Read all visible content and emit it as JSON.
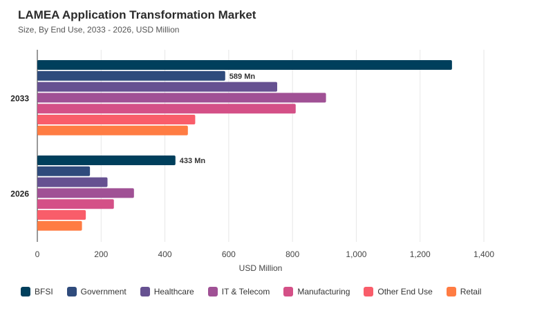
{
  "chart_data": {
    "type": "bar",
    "orientation": "horizontal",
    "title": "LAMEA Application Transformation Market",
    "subtitle": "Size, By End Use, 2033 - 2026, USD Million",
    "xlabel": "USD Million",
    "ylabel": "",
    "xlim": [
      0,
      1400
    ],
    "xticks": [
      "0",
      "200",
      "400",
      "600",
      "800",
      "1,000",
      "1,200",
      "1,400"
    ],
    "xtick_values": [
      0,
      200,
      400,
      600,
      800,
      1000,
      1200,
      1400
    ],
    "grid": true,
    "legend_position": "bottom",
    "categories": [
      "2033",
      "2026"
    ],
    "series": [
      {
        "name": "BFSI",
        "color": "#003f5c",
        "values": [
          1300,
          433
        ]
      },
      {
        "name": "Government",
        "color": "#2f4b7c",
        "values": [
          589,
          165
        ]
      },
      {
        "name": "Healthcare",
        "color": "#665191",
        "values": [
          752,
          220
        ]
      },
      {
        "name": "IT & Telecom",
        "color": "#a05195",
        "values": [
          905,
          303
        ]
      },
      {
        "name": "Manufacturing",
        "color": "#d45087",
        "values": [
          810,
          240
        ]
      },
      {
        "name": "Other End Use",
        "color": "#f95d6a",
        "values": [
          495,
          152
        ]
      },
      {
        "name": "Retail",
        "color": "#ff7c43",
        "values": [
          472,
          140
        ]
      }
    ],
    "annotations": [
      {
        "category": "2033",
        "series": "Government",
        "text": "589 Mn"
      },
      {
        "category": "2026",
        "series": "BFSI",
        "text": "433 Mn"
      }
    ]
  }
}
